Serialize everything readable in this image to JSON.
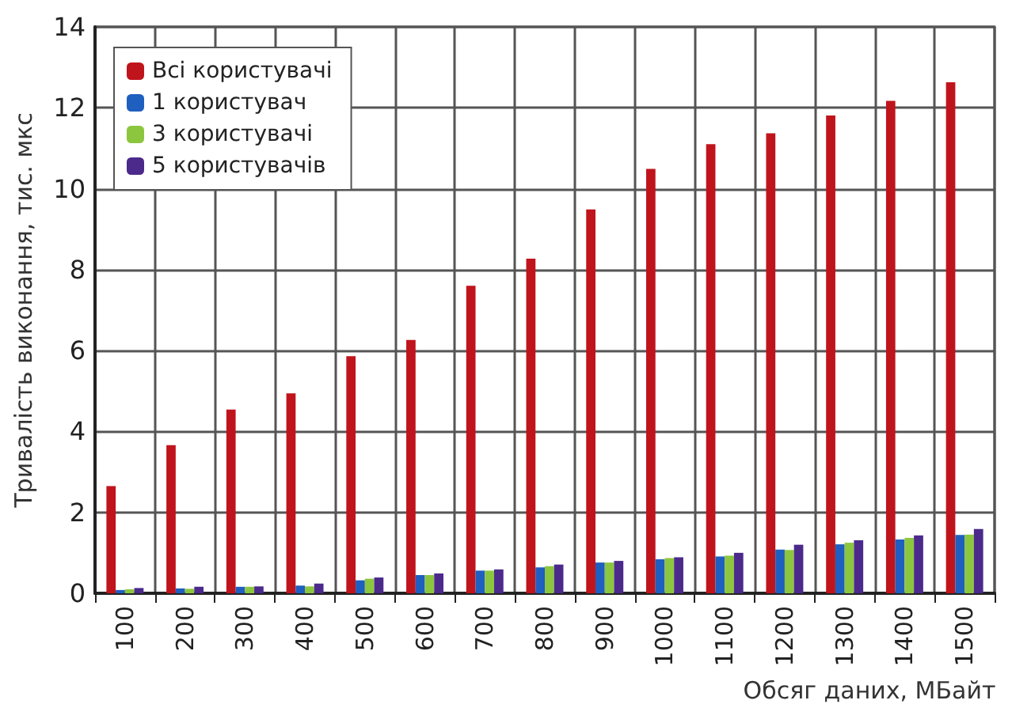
{
  "chart_data": {
    "type": "bar",
    "xlabel": "Обсяг даних, МБайт",
    "ylabel": "Тривалість виконання, тис. мкс",
    "categories": [
      "100",
      "200",
      "300",
      "400",
      "500",
      "600",
      "700",
      "800",
      "900",
      "1000",
      "1100",
      "1200",
      "1300",
      "1400",
      "1500"
    ],
    "series": [
      {
        "name": "Всі користувачі",
        "color": "#c0141c",
        "values": [
          2.65,
          3.66,
          4.54,
          4.94,
          5.86,
          6.26,
          7.6,
          8.27,
          9.49,
          10.49,
          11.1,
          11.37,
          11.81,
          12.17,
          12.63
        ]
      },
      {
        "name": "1 користувач",
        "color": "#1f5fbf",
        "values": [
          0.08,
          0.12,
          0.16,
          0.19,
          0.32,
          0.45,
          0.56,
          0.64,
          0.76,
          0.84,
          0.91,
          1.08,
          1.21,
          1.33,
          1.44
        ]
      },
      {
        "name": "3 користувачі",
        "color": "#8cc63f",
        "values": [
          0.1,
          0.11,
          0.16,
          0.17,
          0.36,
          0.45,
          0.56,
          0.67,
          0.76,
          0.87,
          0.93,
          1.07,
          1.25,
          1.37,
          1.45
        ]
      },
      {
        "name": "5 користувачів",
        "color": "#4b2a8c",
        "values": [
          0.13,
          0.16,
          0.17,
          0.24,
          0.39,
          0.49,
          0.59,
          0.71,
          0.8,
          0.89,
          1.0,
          1.2,
          1.31,
          1.43,
          1.59
        ]
      }
    ],
    "ylim": [
      0,
      14
    ],
    "yticks": [
      0,
      2,
      4,
      6,
      8,
      10,
      12,
      14
    ],
    "grid": true,
    "legend": "top left"
  }
}
